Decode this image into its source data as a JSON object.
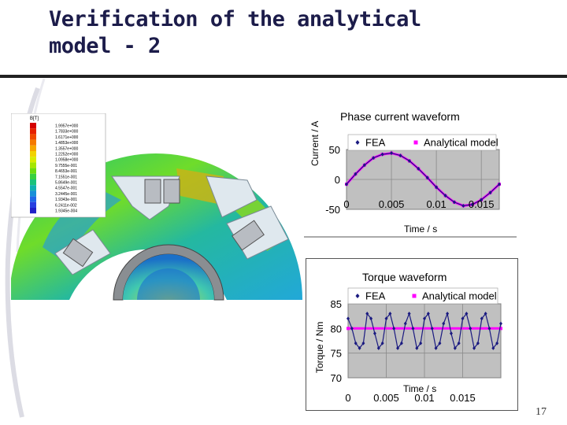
{
  "slide": {
    "title": "Verification of the analytical\nmodel - 2",
    "page_number": "17"
  },
  "fem_legend": {
    "title": "B[T]",
    "values": [
      "1.9957e+000",
      "1.7833e+000",
      "1.6171e+000",
      "1.4853e+000",
      "1.3557e+000",
      "1.2252e+000",
      "1.0958e+000",
      "9.7555e-001",
      "8.4653e-001",
      "7.1551e-001",
      "5.8649e-001",
      "4.5547e-001",
      "3.2445e-001",
      "1.9343e-001",
      "6.2411e-002",
      "1.9345e-004"
    ],
    "colors": [
      "#d40000",
      "#e62000",
      "#f04a00",
      "#f57a00",
      "#f7a700",
      "#f2d200",
      "#d9ec00",
      "#a6e600",
      "#6ddc10",
      "#38d040",
      "#1ac27a",
      "#10b0b0",
      "#1890d8",
      "#2068e8",
      "#2840e0",
      "#2020c8"
    ]
  },
  "chart_data": [
    {
      "type": "line",
      "title": "Phase current waveform",
      "xlabel": "Time / s",
      "ylabel": "Current / A",
      "xlim": [
        0,
        0.017
      ],
      "ylim": [
        -50,
        50
      ],
      "x_ticks": [
        "0",
        "0.005",
        "0.01",
        "0.015"
      ],
      "y_ticks": [
        "50",
        "0",
        "-50"
      ],
      "grid": true,
      "legend": "top",
      "series": [
        {
          "name": "FEA",
          "color": "#1a1a80",
          "marker": "diamond",
          "x": [
            0,
            0.001,
            0.002,
            0.003,
            0.004,
            0.005,
            0.006,
            0.007,
            0.008,
            0.009,
            0.01,
            0.011,
            0.012,
            0.013,
            0.014,
            0.015,
            0.016,
            0.017
          ],
          "y": [
            -8,
            9,
            24,
            36,
            42,
            44,
            40,
            31,
            18,
            3,
            -13,
            -27,
            -38,
            -44,
            -42,
            -34,
            -22,
            -8
          ]
        },
        {
          "name": "Analytical model",
          "color": "#ff00ff",
          "marker": "square",
          "x": [
            0,
            0.001,
            0.002,
            0.003,
            0.004,
            0.005,
            0.006,
            0.007,
            0.008,
            0.009,
            0.01,
            0.011,
            0.012,
            0.013,
            0.014,
            0.015,
            0.016,
            0.017
          ],
          "y": [
            -8,
            9,
            24,
            36,
            42,
            44,
            40,
            31,
            18,
            3,
            -13,
            -27,
            -38,
            -44,
            -42,
            -34,
            -22,
            -8
          ]
        }
      ]
    },
    {
      "type": "line",
      "title": "Torque waveform",
      "xlabel": "Time / s",
      "ylabel": "Torque / Nm",
      "xlim": [
        0,
        0.02
      ],
      "ylim": [
        70,
        85
      ],
      "x_ticks": [
        "0",
        "0.005",
        "0.01",
        "0.015"
      ],
      "y_ticks": [
        "85",
        "80",
        "75",
        "70"
      ],
      "grid": true,
      "legend": "top",
      "series": [
        {
          "name": "FEA",
          "color": "#1a1a80",
          "marker": "diamond",
          "x": [
            0,
            0.0005,
            0.001,
            0.0015,
            0.002,
            0.0025,
            0.003,
            0.0035,
            0.004,
            0.0045,
            0.005,
            0.0055,
            0.006,
            0.0065,
            0.007,
            0.0075,
            0.008,
            0.0085,
            0.009,
            0.0095,
            0.01,
            0.0105,
            0.011,
            0.0115,
            0.012,
            0.0125,
            0.013,
            0.0135,
            0.014,
            0.0145,
            0.015,
            0.0155,
            0.016,
            0.0165,
            0.017,
            0.0175,
            0.018,
            0.0185,
            0.019,
            0.0195,
            0.02
          ],
          "y": [
            82,
            80,
            77,
            76,
            77,
            83,
            82,
            79,
            76,
            77,
            82,
            83,
            80,
            76,
            77,
            81,
            83,
            80,
            76,
            77,
            82,
            83,
            80,
            76,
            77,
            81,
            83,
            79,
            76,
            77,
            82,
            83,
            80,
            76,
            77,
            82,
            83,
            80,
            76,
            77,
            81
          ]
        },
        {
          "name": "Analytical model",
          "color": "#ff00ff",
          "marker": "square",
          "x": [
            0,
            0.02
          ],
          "y": [
            80,
            80
          ]
        }
      ]
    }
  ]
}
